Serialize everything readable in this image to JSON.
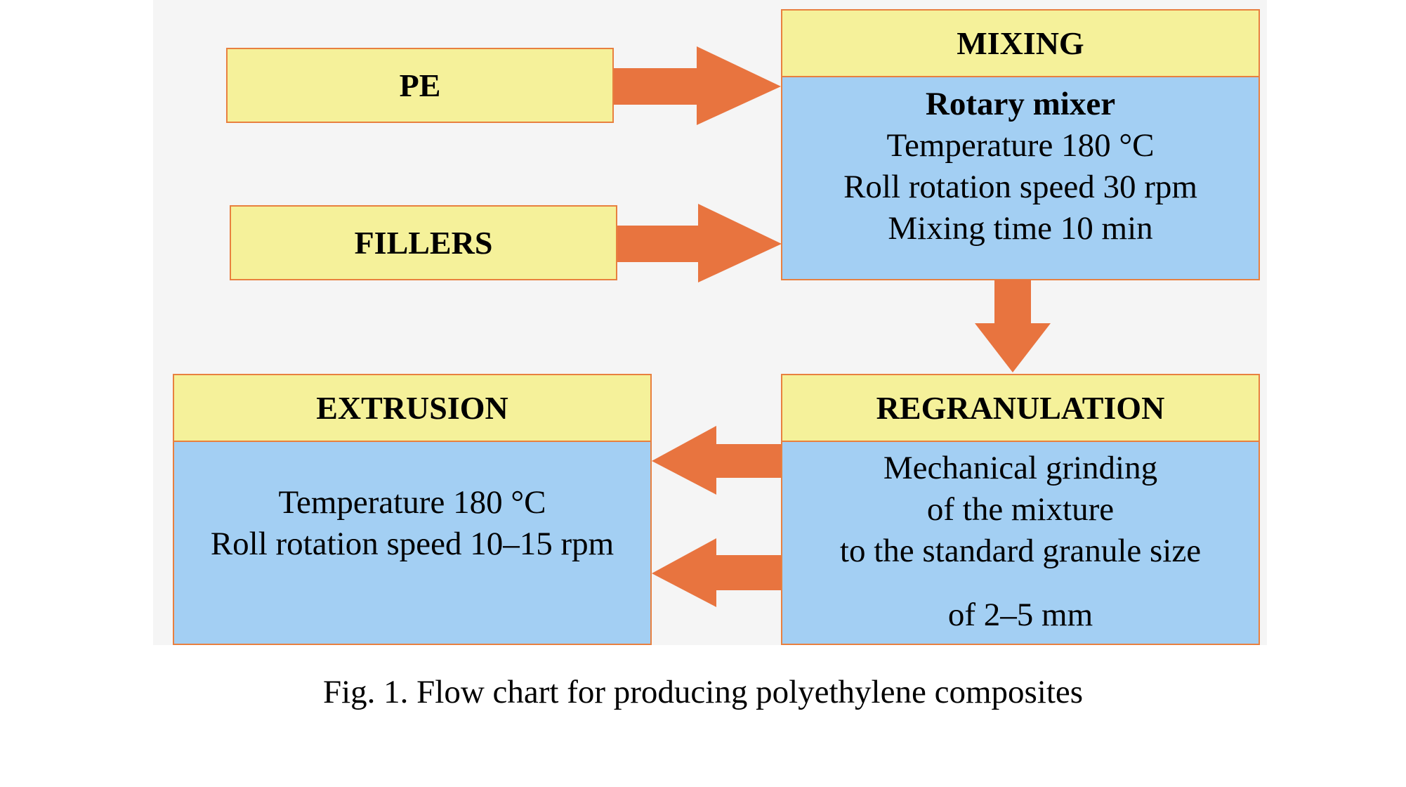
{
  "inputs": {
    "pe": "PE",
    "fillers": "FILLERS"
  },
  "mixing": {
    "title": "MIXING",
    "lines": [
      "Rotary mixer",
      "Temperature 180 °C",
      "Roll rotation speed 30 rpm",
      "Mixing time 10 min"
    ]
  },
  "regranulation": {
    "title": "REGRANULATION",
    "lines": [
      "Mechanical grinding",
      "of the mixture",
      "to the standard granule size",
      "of 2–5 mm"
    ]
  },
  "extrusion": {
    "title": "EXTRUSION",
    "lines": [
      "Temperature 180 °C",
      "Roll rotation speed 10–15 rpm"
    ]
  },
  "caption": "Fig. 1. Flow chart for producing polyethylene composites",
  "colors": {
    "header_fill": "#f5f19a",
    "body_fill": "#a3cff3",
    "border": "#e8803f",
    "arrow": "#e8743f"
  }
}
